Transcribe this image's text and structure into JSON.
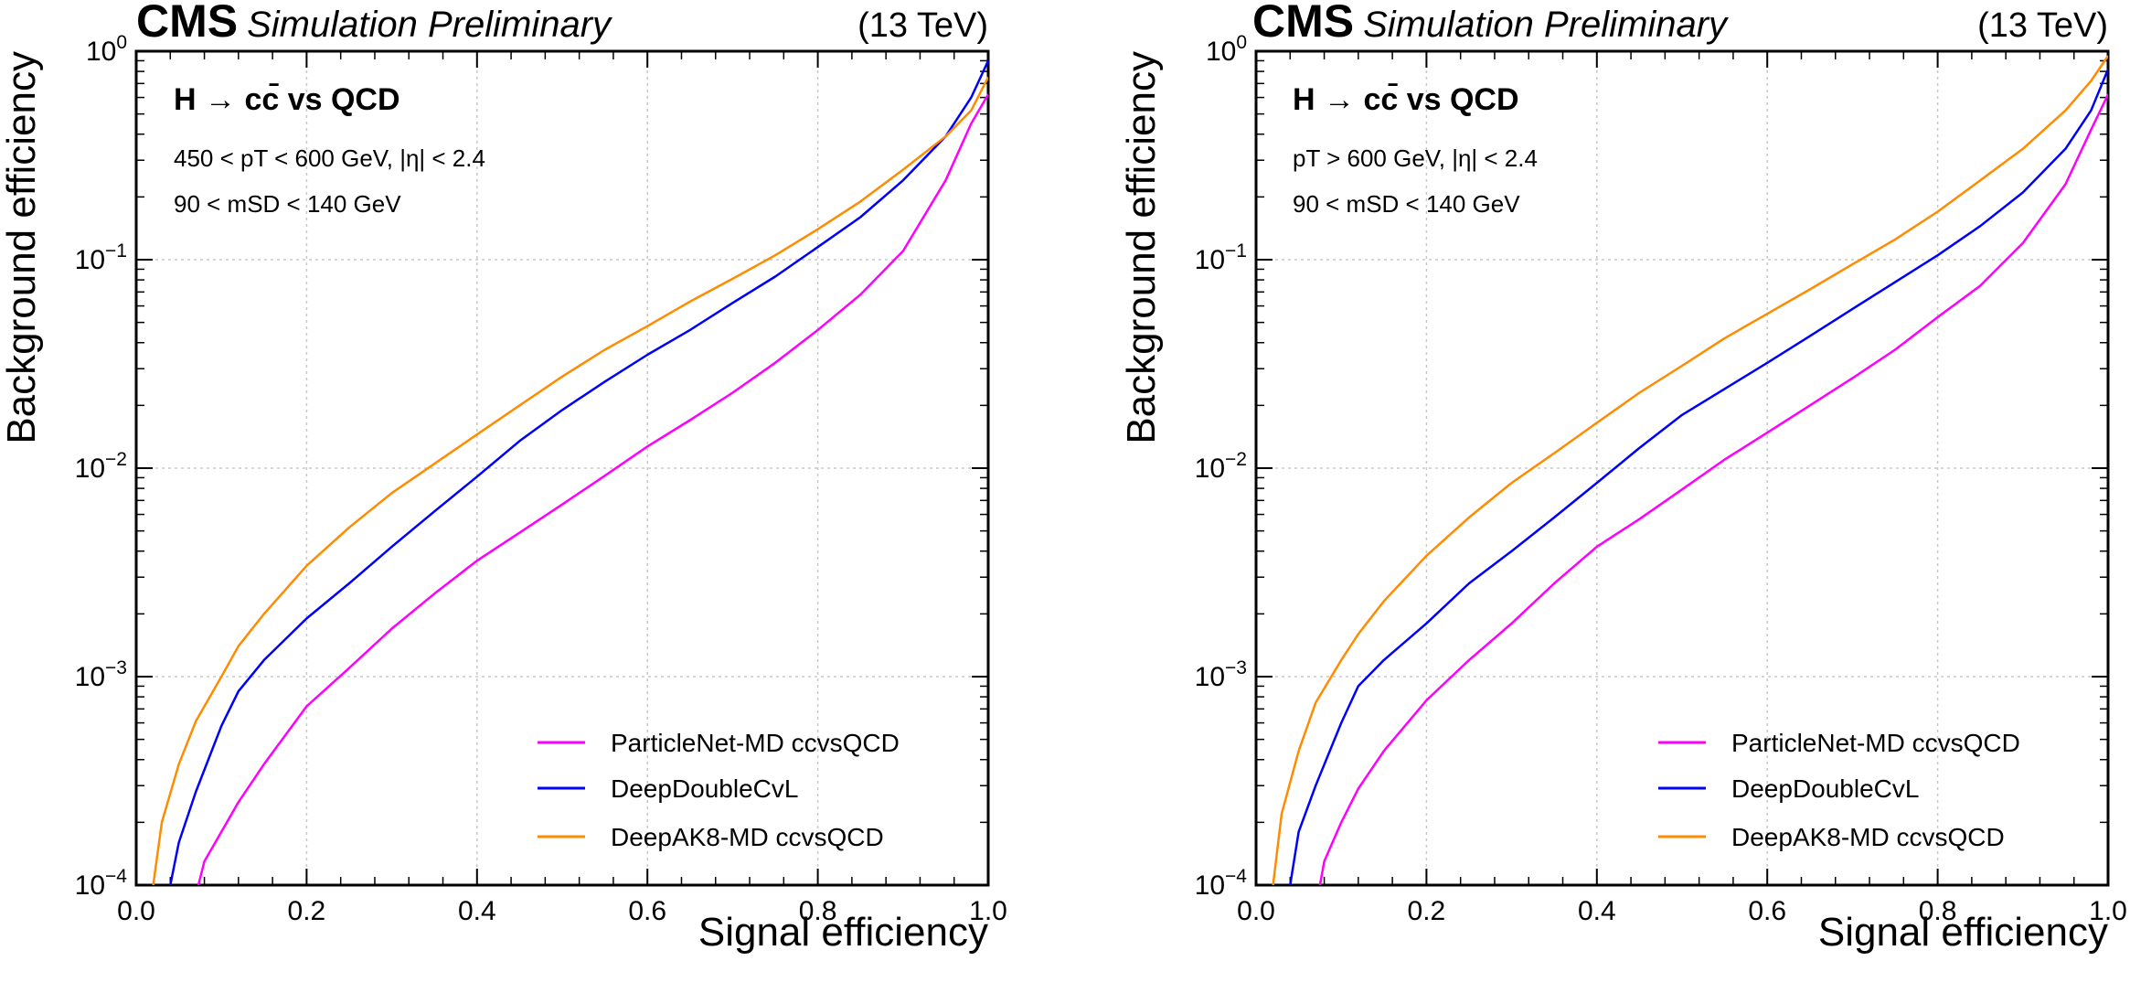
{
  "header": {
    "experiment": "CMS",
    "status": "Simulation Preliminary",
    "energy": "(13 TeV)"
  },
  "colors": {
    "particlenet": "#ff00ff",
    "deepdouble": "#0000ff",
    "deepak8": "#ff8c00"
  },
  "chart_data": [
    {
      "type": "line",
      "xlabel": "Signal efficiency",
      "ylabel": "Background efficiency",
      "xlim": [
        0.0,
        1.0
      ],
      "ylim": [
        0.0001,
        1
      ],
      "yscale": "log",
      "grid": true,
      "x_ticks": [
        "0.0",
        "0.2",
        "0.4",
        "0.6",
        "0.8",
        "1.0"
      ],
      "y_ticks": [
        "10^-4",
        "10^-3",
        "10^-2",
        "10^-1",
        "10^0"
      ],
      "annotations": {
        "process": "H → cc̄ vs QCD",
        "cut1": "450 < pT < 600 GeV, |η| < 2.4",
        "cut2": "90 < mSD < 140 GeV"
      },
      "legend_position": "lower-right",
      "series": [
        {
          "name": "ParticleNet-MD ccvsQCD",
          "x": [
            0.073,
            0.08,
            0.1,
            0.12,
            0.15,
            0.2,
            0.25,
            0.3,
            0.35,
            0.4,
            0.45,
            0.5,
            0.55,
            0.6,
            0.65,
            0.7,
            0.75,
            0.8,
            0.85,
            0.9,
            0.95,
            0.98,
            1.0
          ],
          "y": [
            0.0001,
            0.00013,
            0.00018,
            0.00025,
            0.00038,
            0.00072,
            0.0011,
            0.0017,
            0.0025,
            0.0036,
            0.0049,
            0.0067,
            0.0092,
            0.0127,
            0.017,
            0.023,
            0.032,
            0.046,
            0.068,
            0.11,
            0.24,
            0.45,
            0.62
          ]
        },
        {
          "name": "DeepDoubleCvL",
          "x": [
            0.04,
            0.05,
            0.07,
            0.1,
            0.12,
            0.15,
            0.2,
            0.25,
            0.3,
            0.35,
            0.4,
            0.45,
            0.5,
            0.55,
            0.6,
            0.65,
            0.7,
            0.75,
            0.8,
            0.85,
            0.9,
            0.95,
            0.98,
            1.0
          ],
          "y": [
            0.0001,
            0.00016,
            0.00028,
            0.00058,
            0.00085,
            0.0012,
            0.0019,
            0.0028,
            0.0042,
            0.0062,
            0.0091,
            0.0135,
            0.019,
            0.026,
            0.035,
            0.046,
            0.062,
            0.083,
            0.115,
            0.16,
            0.24,
            0.39,
            0.6,
            0.9
          ]
        },
        {
          "name": "DeepAK8-MD ccvsQCD",
          "x": [
            0.02,
            0.03,
            0.05,
            0.07,
            0.1,
            0.12,
            0.15,
            0.2,
            0.25,
            0.3,
            0.35,
            0.4,
            0.45,
            0.5,
            0.55,
            0.6,
            0.65,
            0.7,
            0.75,
            0.8,
            0.85,
            0.9,
            0.95,
            0.98,
            1.0
          ],
          "y": [
            0.0001,
            0.0002,
            0.00038,
            0.00061,
            0.001,
            0.0014,
            0.002,
            0.0034,
            0.0052,
            0.0076,
            0.0105,
            0.0145,
            0.02,
            0.0275,
            0.037,
            0.048,
            0.063,
            0.081,
            0.105,
            0.14,
            0.19,
            0.27,
            0.39,
            0.52,
            0.75
          ]
        }
      ]
    },
    {
      "type": "line",
      "xlabel": "Signal efficiency",
      "ylabel": "Background efficiency",
      "xlim": [
        0.0,
        1.0
      ],
      "ylim": [
        0.0001,
        1
      ],
      "yscale": "log",
      "grid": true,
      "x_ticks": [
        "0.0",
        "0.2",
        "0.4",
        "0.6",
        "0.8",
        "1.0"
      ],
      "y_ticks": [
        "10^-4",
        "10^-3",
        "10^-2",
        "10^-1",
        "10^0"
      ],
      "annotations": {
        "process": "H → cc̄ vs QCD",
        "cut1": "pT > 600 GeV,   |η| < 2.4",
        "cut2": "90 < mSD < 140 GeV"
      },
      "legend_position": "lower-right",
      "series": [
        {
          "name": "ParticleNet-MD ccvsQCD",
          "x": [
            0.075,
            0.08,
            0.1,
            0.12,
            0.15,
            0.2,
            0.25,
            0.3,
            0.35,
            0.4,
            0.45,
            0.5,
            0.55,
            0.6,
            0.65,
            0.7,
            0.75,
            0.8,
            0.85,
            0.9,
            0.95,
            0.98,
            1.0
          ],
          "y": [
            0.0001,
            0.00013,
            0.0002,
            0.00029,
            0.00044,
            0.00077,
            0.0012,
            0.0018,
            0.0028,
            0.0042,
            0.0057,
            0.0079,
            0.011,
            0.0148,
            0.02,
            0.027,
            0.037,
            0.053,
            0.075,
            0.12,
            0.23,
            0.42,
            0.62
          ]
        },
        {
          "name": "DeepDoubleCvL",
          "x": [
            0.04,
            0.05,
            0.07,
            0.1,
            0.12,
            0.15,
            0.2,
            0.25,
            0.3,
            0.35,
            0.4,
            0.45,
            0.5,
            0.55,
            0.6,
            0.65,
            0.7,
            0.75,
            0.8,
            0.85,
            0.9,
            0.95,
            0.98,
            1.0
          ],
          "y": [
            0.0001,
            0.00018,
            0.0003,
            0.0006,
            0.0009,
            0.0012,
            0.0018,
            0.0028,
            0.004,
            0.0058,
            0.0085,
            0.0125,
            0.018,
            0.024,
            0.032,
            0.043,
            0.058,
            0.078,
            0.105,
            0.145,
            0.21,
            0.34,
            0.52,
            0.82
          ]
        },
        {
          "name": "DeepAK8-MD ccvsQCD",
          "x": [
            0.02,
            0.03,
            0.05,
            0.07,
            0.1,
            0.12,
            0.15,
            0.2,
            0.25,
            0.3,
            0.35,
            0.4,
            0.45,
            0.5,
            0.55,
            0.6,
            0.65,
            0.7,
            0.75,
            0.8,
            0.85,
            0.9,
            0.95,
            0.98,
            1.0
          ],
          "y": [
            0.0001,
            0.00022,
            0.00044,
            0.00075,
            0.0012,
            0.0016,
            0.0023,
            0.0038,
            0.0058,
            0.0085,
            0.0118,
            0.0165,
            0.023,
            0.031,
            0.042,
            0.055,
            0.072,
            0.095,
            0.125,
            0.17,
            0.24,
            0.34,
            0.52,
            0.72,
            0.95
          ]
        }
      ]
    }
  ]
}
